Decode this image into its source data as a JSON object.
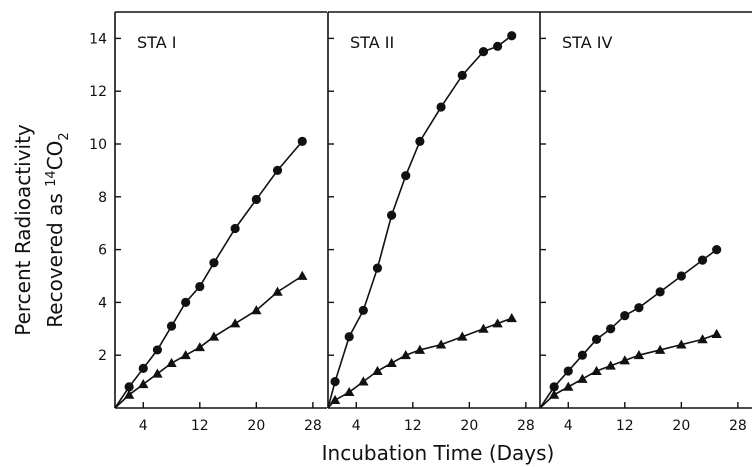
{
  "chart_data": {
    "type": "line",
    "ylabel_line1": "Percent Radioactivity",
    "ylabel_line2_prefix": "Recovered as ",
    "ylabel_sup": "14",
    "ylabel_chem": "CO",
    "ylabel_sub": "2",
    "xlabel": "Incubation Time (Days)",
    "ylim": [
      0,
      15
    ],
    "xlim": [
      0,
      30
    ],
    "y_ticks": [
      2,
      4,
      6,
      8,
      10,
      12,
      14
    ],
    "x_ticks": [
      4,
      12,
      20,
      28
    ],
    "legend": "none",
    "panels": [
      {
        "title": "STA I",
        "series": [
          {
            "marker": "circle",
            "x": [
              2,
              4,
              6,
              8,
              10,
              12,
              14,
              17,
              20,
              23,
              26.5
            ],
            "y": [
              0.8,
              1.5,
              2.2,
              3.1,
              4.0,
              4.6,
              5.5,
              6.8,
              7.9,
              9.0,
              10.1
            ]
          },
          {
            "marker": "triangle",
            "x": [
              2,
              4,
              6,
              8,
              10,
              12,
              14,
              17,
              20,
              23,
              26.5
            ],
            "y": [
              0.5,
              0.9,
              1.3,
              1.7,
              2.0,
              2.3,
              2.7,
              3.2,
              3.7,
              4.4,
              5.0
            ]
          }
        ]
      },
      {
        "title": "STA II",
        "series": [
          {
            "marker": "circle",
            "x": [
              1,
              3,
              5,
              7,
              9,
              11,
              13,
              16,
              19,
              22,
              24,
              26
            ],
            "y": [
              1.0,
              2.7,
              3.7,
              5.3,
              7.3,
              8.8,
              10.1,
              11.4,
              12.6,
              13.5,
              13.7,
              14.1
            ]
          },
          {
            "marker": "triangle",
            "x": [
              1,
              3,
              5,
              7,
              9,
              11,
              13,
              16,
              19,
              22,
              24,
              26
            ],
            "y": [
              0.3,
              0.6,
              1.0,
              1.4,
              1.7,
              2.0,
              2.2,
              2.4,
              2.7,
              3.0,
              3.2,
              3.4
            ]
          }
        ]
      },
      {
        "title": "STA IV",
        "series": [
          {
            "marker": "circle",
            "x": [
              2,
              4,
              6,
              8,
              10,
              12,
              14,
              17,
              20,
              23,
              25
            ],
            "y": [
              0.8,
              1.4,
              2.0,
              2.6,
              3.0,
              3.5,
              3.8,
              4.4,
              5.0,
              5.6,
              6.0
            ]
          },
          {
            "marker": "triangle",
            "x": [
              2,
              4,
              6,
              8,
              10,
              12,
              14,
              17,
              20,
              23,
              25
            ],
            "y": [
              0.5,
              0.8,
              1.1,
              1.4,
              1.6,
              1.8,
              2.0,
              2.2,
              2.4,
              2.6,
              2.8
            ]
          }
        ]
      }
    ]
  }
}
